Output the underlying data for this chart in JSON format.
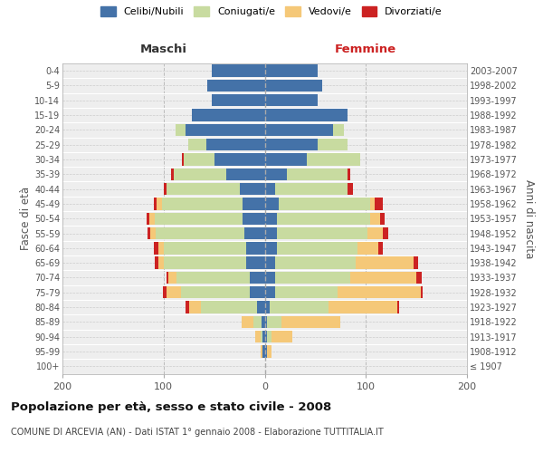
{
  "age_groups": [
    "100+",
    "95-99",
    "90-94",
    "85-89",
    "80-84",
    "75-79",
    "70-74",
    "65-69",
    "60-64",
    "55-59",
    "50-54",
    "45-49",
    "40-44",
    "35-39",
    "30-34",
    "25-29",
    "20-24",
    "15-19",
    "10-14",
    "5-9",
    "0-4"
  ],
  "birth_years": [
    "≤ 1907",
    "1908-1912",
    "1913-1917",
    "1918-1922",
    "1923-1927",
    "1928-1932",
    "1933-1937",
    "1938-1942",
    "1943-1947",
    "1948-1952",
    "1953-1957",
    "1958-1962",
    "1963-1967",
    "1968-1972",
    "1973-1977",
    "1978-1982",
    "1983-1987",
    "1988-1992",
    "1993-1997",
    "1998-2002",
    "2003-2007"
  ],
  "colors": {
    "celibi": "#4472a8",
    "coniugati": "#c8dba0",
    "vedovi": "#f5c878",
    "divorziati": "#cc2222"
  },
  "maschi": {
    "celibi": [
      0,
      2,
      2,
      3,
      8,
      15,
      15,
      18,
      18,
      20,
      22,
      22,
      25,
      38,
      50,
      58,
      78,
      72,
      52,
      57,
      52
    ],
    "coniugati": [
      0,
      0,
      2,
      8,
      55,
      68,
      72,
      82,
      82,
      88,
      87,
      80,
      72,
      52,
      30,
      18,
      10,
      0,
      0,
      0,
      0
    ],
    "vedovi": [
      0,
      2,
      5,
      12,
      12,
      14,
      8,
      5,
      5,
      5,
      5,
      5,
      0,
      0,
      0,
      0,
      0,
      0,
      0,
      0,
      0
    ],
    "divorziati": [
      0,
      0,
      0,
      0,
      3,
      4,
      2,
      4,
      5,
      3,
      3,
      3,
      3,
      3,
      2,
      0,
      0,
      0,
      0,
      0,
      0
    ]
  },
  "femmine": {
    "celibi": [
      0,
      2,
      2,
      2,
      5,
      10,
      10,
      10,
      12,
      12,
      12,
      14,
      10,
      22,
      42,
      52,
      68,
      82,
      52,
      57,
      52
    ],
    "coniugati": [
      0,
      0,
      5,
      15,
      58,
      62,
      75,
      80,
      80,
      90,
      92,
      90,
      72,
      60,
      52,
      30,
      10,
      0,
      0,
      0,
      0
    ],
    "vedovi": [
      0,
      5,
      20,
      58,
      68,
      82,
      65,
      57,
      20,
      15,
      10,
      5,
      0,
      0,
      0,
      0,
      0,
      0,
      0,
      0,
      0
    ],
    "divorziati": [
      0,
      0,
      0,
      0,
      2,
      2,
      5,
      5,
      5,
      5,
      5,
      8,
      5,
      3,
      0,
      0,
      0,
      0,
      0,
      0,
      0
    ]
  },
  "xlim": 200,
  "title": "Popolazione per età, sesso e stato civile - 2008",
  "subtitle": "COMUNE DI ARCEVIA (AN) - Dati ISTAT 1° gennaio 2008 - Elaborazione TUTTITALIA.IT",
  "ylabel_left": "Fasce di età",
  "ylabel_right": "Anni di nascita",
  "xlabel_maschi": "Maschi",
  "xlabel_femmine": "Femmine",
  "bg_color": "#eeeeee",
  "legend_labels": [
    "Celibi/Nubili",
    "Coniugati/e",
    "Vedovi/e",
    "Divorziati/e"
  ]
}
